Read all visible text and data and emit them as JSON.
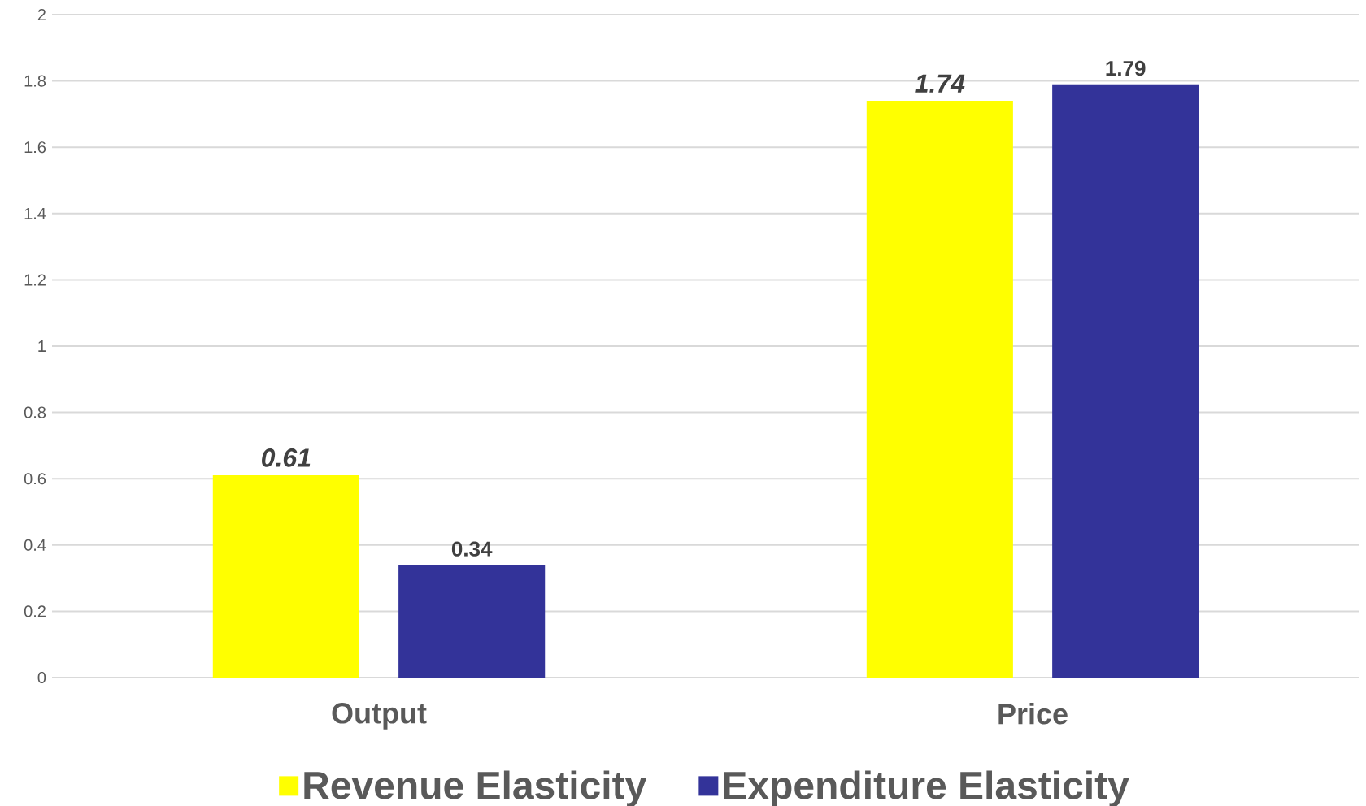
{
  "chart_data": {
    "type": "bar",
    "categories": [
      "Output",
      "Price"
    ],
    "series": [
      {
        "name": "Revenue Elasticity",
        "color": "#ffff00",
        "values": [
          0.61,
          1.74
        ],
        "value_labels": [
          "0.61",
          "1.74"
        ]
      },
      {
        "name": "Expenditure Elasticity",
        "color": "#333399",
        "values": [
          0.34,
          1.79
        ],
        "value_labels": [
          "0.34",
          "1.79"
        ]
      }
    ],
    "ylim": [
      0,
      2
    ],
    "yticks": [
      0,
      0.2,
      0.4,
      0.6,
      0.8,
      1,
      1.2,
      1.4,
      1.6,
      1.8,
      2
    ],
    "grid": "y",
    "legend": "bottom"
  }
}
